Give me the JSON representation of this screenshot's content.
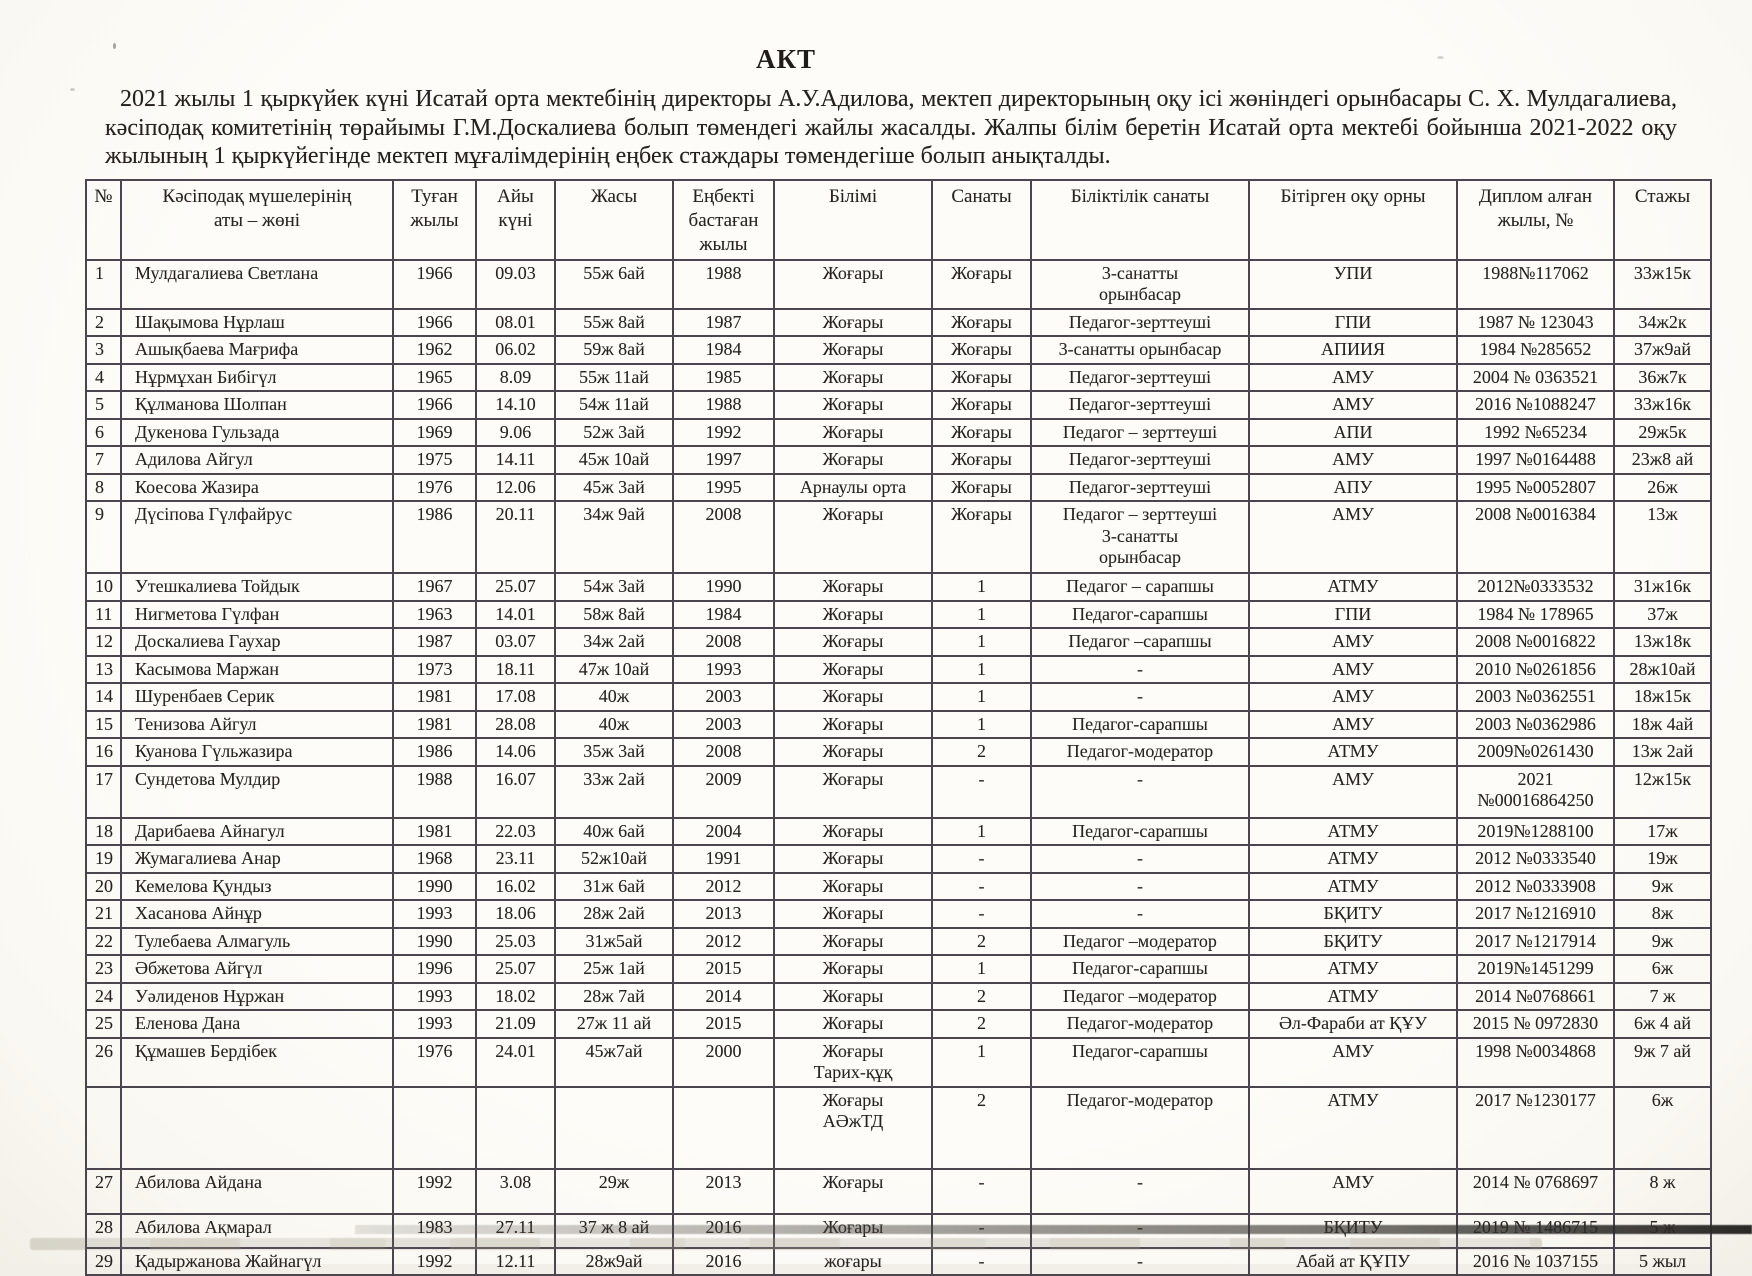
{
  "title": "АКТ",
  "intro": "2021 жылы 1 қыркүйек күні Исатай орта мектебінің директоры А.У.Адилова, мектеп директорының оқу ісі жөніндегі орынбасары С. Х. Мулдагалиева, кәсіподақ комитетінің төрайымы Г.М.Доскалиева болып төмендегі жайлы жасалды. Жалпы білім беретін Исатай орта мектебі бойынша 2021-2022 оқу жылының 1 қыркүйегінде мектеп мұғалімдерінің еңбек стаждары төмендегіше болып анықталды.",
  "table": {
    "headers": [
      "№",
      "Кәсіподақ мүшелерінің\nаты – жөні",
      "Туған\nжылы",
      "Айы\nкүні",
      "Жасы",
      "Еңбекті\nбастаған\nжылы",
      "Білімі",
      "Санаты",
      "Біліктілік санаты",
      "Бітірген оқу  орны",
      "Диплом алған\nжылы, №",
      "Стажы"
    ],
    "rows": [
      [
        "1",
        "Мулдагалиева Светлана",
        "1966",
        "09.03",
        "55ж 6ай",
        "1988",
        "Жоғары",
        "Жоғары",
        "3-санатты\nорынбасар",
        "УПИ",
        "1988№117062",
        "33ж15к"
      ],
      [
        "2",
        "Шақымова  Нұрлаш",
        "1966",
        "08.01",
        "55ж 8ай",
        "1987",
        "Жоғары",
        "Жоғары",
        "Педагог-зерттеуші",
        "ГПИ",
        "1987 № 123043",
        "34ж2к"
      ],
      [
        "3",
        "Ашықбаева  Мағрифа",
        "1962",
        "06.02",
        "59ж 8ай",
        "1984",
        "Жоғары",
        "Жоғары",
        "3-санатты орынбасар",
        "АПИИЯ",
        "1984 №285652",
        "37ж9ай"
      ],
      [
        "4",
        "Нұрмұхан  Бибігүл",
        "1965",
        "8.09",
        "55ж 11ай",
        "1985",
        "Жоғары",
        "Жоғары",
        "Педагог-зерттеуші",
        "АМУ",
        "2004 № 0363521",
        "36ж7к"
      ],
      [
        "5",
        "Құлманова Шолпан",
        "1966",
        "14.10",
        "54ж 11ай",
        "1988",
        "Жоғары",
        "Жоғары",
        "Педагог-зерттеуші",
        "АМУ",
        "2016 №1088247",
        "33ж16к"
      ],
      [
        "6",
        "Дукенова  Гульзада",
        "1969",
        "9.06",
        "52ж 3ай",
        "1992",
        "Жоғары",
        "Жоғары",
        "Педагог – зерттеуші",
        "АПИ",
        "1992 №65234",
        "29ж5к"
      ],
      [
        "7",
        "Адилова  Айгул",
        "1975",
        "14.11",
        "45ж 10ай",
        "1997",
        "Жоғары",
        "Жоғары",
        "Педагог-зерттеуші",
        "АМУ",
        "1997 №0164488",
        "23ж8 ай"
      ],
      [
        "8",
        "Коесова  Жазира",
        "1976",
        "12.06",
        "45ж 3ай",
        "1995",
        "Арнаулы орта",
        "Жоғары",
        "Педагог-зерттеуші",
        "АПУ",
        "1995 №0052807",
        "26ж"
      ],
      [
        "9",
        "Дүсіпова  Гүлфайрус",
        "1986",
        "20.11",
        "34ж 9ай",
        "2008",
        "Жоғары",
        "Жоғары",
        "Педагог – зерттеуші\n3-санатты\nорынбасар",
        "АМУ",
        "2008 №0016384",
        "13ж"
      ],
      [
        "10",
        "Утешкалиева  Тойдык",
        "1967",
        "25.07",
        "54ж 3ай",
        "1990",
        "Жоғары",
        "1",
        "Педагог – сарапшы",
        "АТМУ",
        "2012№0333532",
        "31ж16к"
      ],
      [
        "11",
        "Нигметова  Гүлфан",
        "1963",
        "14.01",
        "58ж 8ай",
        "1984",
        "Жоғары",
        "1",
        "Педагог-сарапшы",
        "ГПИ",
        "1984 № 178965",
        "37ж"
      ],
      [
        "12",
        "Доскалиева Гаухар",
        "1987",
        "03.07",
        "34ж 2ай",
        "2008",
        "Жоғары",
        "1",
        "Педагог –сарапшы",
        "АМУ",
        "2008 №0016822",
        "13ж18к"
      ],
      [
        "13",
        "Касымова  Маржан",
        "1973",
        "18.11",
        "47ж 10ай",
        "1993",
        "Жоғары",
        "1",
        "-",
        "АМУ",
        "2010 №0261856",
        "28ж10ай"
      ],
      [
        "14",
        "Шуренбаев  Серик",
        "1981",
        "17.08",
        "40ж",
        "2003",
        "Жоғары",
        "1",
        "-",
        "АМУ",
        "2003 №0362551",
        "18ж15к"
      ],
      [
        "15",
        "Тенизова  Айгул",
        "1981",
        "28.08",
        "40ж",
        "2003",
        "Жоғары",
        "1",
        "Педагог-сарапшы",
        "АМУ",
        "2003 №0362986",
        "18ж 4ай"
      ],
      [
        "16",
        "Куанова  Гүльжазира",
        "1986",
        "14.06",
        "35ж 3ай",
        "2008",
        "Жоғары",
        "2",
        "Педагог-модератор",
        "АТМУ",
        "2009№0261430",
        "13ж 2ай"
      ],
      [
        "17",
        "Сундетова  Мулдир",
        "1988",
        "16.07",
        "33ж 2ай",
        "2009",
        "Жоғары",
        "-",
        "-",
        "АМУ",
        "2021\n№00016864250",
        "12ж15к"
      ],
      [
        "18",
        "Дарибаева  Айнагул",
        "1981",
        "22.03",
        "40ж 6ай",
        "2004",
        "Жоғары",
        "1",
        "Педагог-сарапшы",
        "АТМУ",
        "2019№1288100",
        "17ж"
      ],
      [
        "19",
        "Жумагалиева  Анар",
        "1968",
        "23.11",
        "52ж10ай",
        "1991",
        "Жоғары",
        "-",
        "-",
        "АТМУ",
        "2012 №0333540",
        "19ж"
      ],
      [
        "20",
        "Кемелова Қундыз",
        "1990",
        "16.02",
        "31ж 6ай",
        "2012",
        "Жоғары",
        "-",
        "-",
        "АТМУ",
        "2012 №0333908",
        "9ж"
      ],
      [
        "21",
        "Хасанова Айнұр",
        "1993",
        "18.06",
        "28ж 2ай",
        "2013",
        "Жоғары",
        "-",
        "-",
        "БҚИТУ",
        "2017 №1216910",
        "8ж"
      ],
      [
        "22",
        "Тулебаева Алмагуль",
        "1990",
        "25.03",
        "31ж5ай",
        "2012",
        "Жоғары",
        "2",
        "Педагог –модератор",
        "БҚИТУ",
        "2017 №1217914",
        "9ж"
      ],
      [
        "23",
        "Әбжетова Айгүл",
        "1996",
        "25.07",
        "25ж 1ай",
        "2015",
        "Жоғары",
        "1",
        "Педагог-сарапшы",
        "АТМУ",
        "2019№1451299",
        "6ж"
      ],
      [
        "24",
        "Уәлиденов Нұржан",
        "1993",
        "18.02",
        "28ж 7ай",
        "2014",
        "Жоғары",
        "2",
        "Педагог –модератор",
        "АТМУ",
        "2014 №0768661",
        "7 ж"
      ],
      [
        "25",
        "Еленова Дана",
        "1993",
        "21.09",
        "27ж 11 ай",
        "2015",
        "Жоғары",
        "2",
        "Педагог-модератор",
        "Әл-Фараби ат ҚҰУ",
        "2015 № 0972830",
        "6ж 4 ай"
      ],
      [
        "26",
        "Құмашев Бердібек",
        "1976",
        "24.01",
        "45ж7ай",
        "2000",
        "Жоғары\nТарих-құқ",
        "1",
        "Педагог-сарапшы",
        "АМУ",
        "1998 №0034868",
        "9ж 7 ай"
      ],
      [
        "",
        "",
        "",
        "",
        "",
        "",
        "Жоғары\nАӘжТД",
        "2",
        "Педагог-модератор",
        "АТМУ",
        "2017 №1230177",
        "6ж"
      ],
      [
        "27",
        "Абилова Айдана",
        "1992",
        "3.08",
        "29ж",
        "2013",
        "Жоғары",
        "-",
        "-",
        "АМУ",
        "2014 № 0768697",
        "8 ж"
      ],
      [
        "28",
        "Абилова Ақмарал",
        "1983",
        "27.11",
        "37 ж 8 ай",
        "2016",
        "Жоғары",
        "-",
        "-",
        "БҚИТУ",
        "2019 № 1486715",
        "5 ж"
      ],
      [
        "29",
        "Қадыржанова Жайнагүл",
        "1992",
        "12.11",
        "28ж9ай",
        "2016",
        "жоғары",
        "-",
        "-",
        "Абай ат ҚҰПУ",
        "2016 № 1037155",
        "5 жыл"
      ]
    ]
  }
}
